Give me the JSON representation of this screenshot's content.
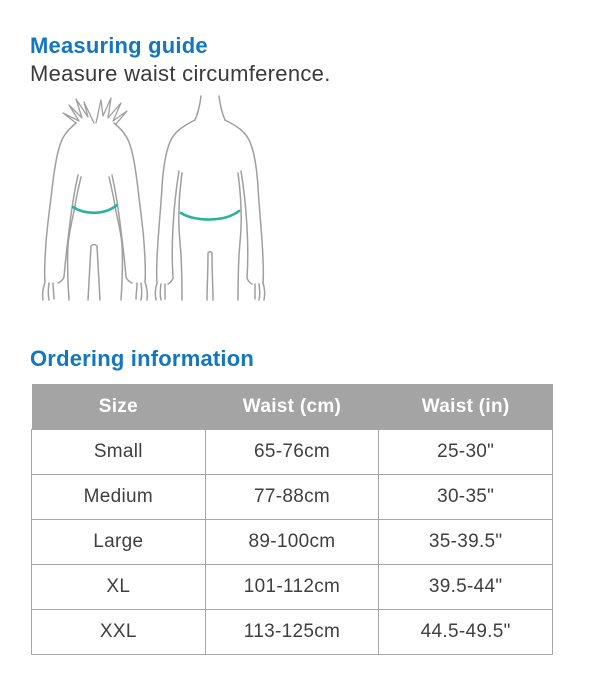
{
  "measuring_guide": {
    "title": "Measuring guide",
    "subtitle": "Measure waist circumference."
  },
  "illustration": {
    "description": "back views of female and male figures with waist measurement line",
    "outline_color": "#9f9f9f",
    "waist_line_color": "#2ab39c"
  },
  "ordering": {
    "title": "Ordering information",
    "table": {
      "headers": [
        "Size",
        "Waist (cm)",
        "Waist (in)"
      ],
      "rows": [
        [
          "Small",
          "65-76cm",
          "25-30\""
        ],
        [
          "Medium",
          "77-88cm",
          "30-35\""
        ],
        [
          "Large",
          "89-100cm",
          "35-39.5\""
        ],
        [
          "XL",
          "101-112cm",
          "39.5-44\""
        ],
        [
          "XXL",
          "113-125cm",
          "44.5-49.5\""
        ]
      ]
    }
  },
  "colors": {
    "heading_blue": "#1377bd",
    "table_header_bg": "#a4a4a4",
    "table_border": "#a6a6a6",
    "body_text": "#3a3a3a",
    "cell_text": "#3f3f3f"
  }
}
